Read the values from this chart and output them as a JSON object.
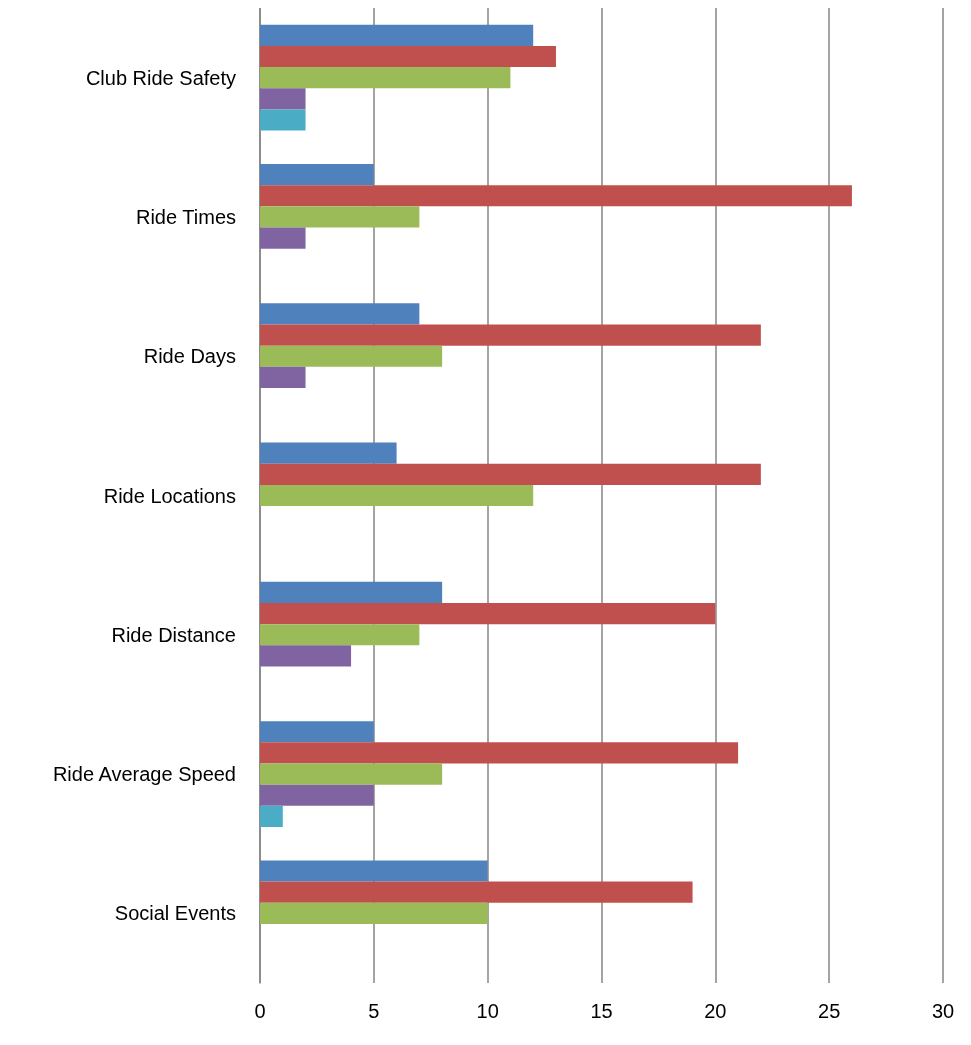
{
  "chart_data": {
    "type": "bar",
    "orientation": "horizontal",
    "categories": [
      "Club Ride Safety",
      "Ride Times",
      "Ride Days",
      "Ride Locations",
      "Ride Distance",
      "Ride Average Speed",
      "Social Events"
    ],
    "series": [
      {
        "color": "#4f81bd",
        "values": [
          12,
          5,
          7,
          6,
          8,
          5,
          10
        ]
      },
      {
        "color": "#c0504d",
        "values": [
          13,
          26,
          22,
          22,
          20,
          21,
          19
        ]
      },
      {
        "color": "#9bbb59",
        "values": [
          11,
          7,
          8,
          12,
          7,
          8,
          10
        ]
      },
      {
        "color": "#8064a2",
        "values": [
          2,
          2,
          2,
          null,
          4,
          5,
          null
        ]
      },
      {
        "color": "#4bacc6",
        "values": [
          2,
          null,
          null,
          null,
          null,
          1,
          null
        ]
      }
    ],
    "xlim": [
      0,
      30
    ],
    "xticks": [
      0,
      5,
      10,
      15,
      20,
      25,
      30
    ],
    "grid": "x"
  }
}
